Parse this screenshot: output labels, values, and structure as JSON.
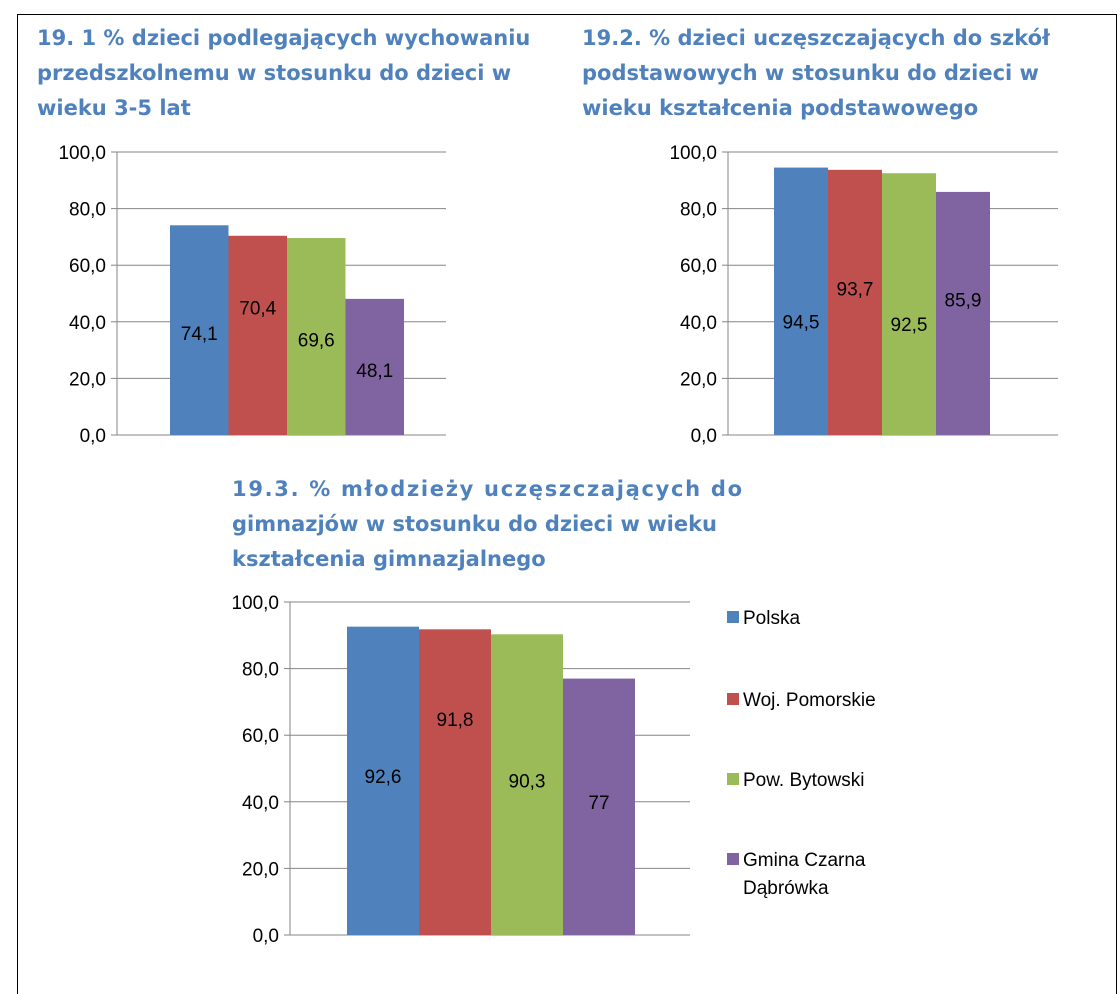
{
  "legend": [
    {
      "name": "Polska",
      "color": "#4f81bd"
    },
    {
      "name": "Woj. Pomorskie",
      "color": "#c0504d"
    },
    {
      "name": "Pow. Bytowski",
      "color": "#9bbb59"
    },
    {
      "name": "Gmina Czarna Dąbrówka",
      "color": "#8064a2"
    }
  ],
  "chart_data": [
    {
      "type": "bar",
      "title": "19. 1 % dzieci podlegających wychowaniu przedszkolnemu w stosunku do dzieci w wieku 3-5 lat",
      "title_lines": [
        "19. 1 % dzieci podlegających wychowaniu",
        "przedszkolnemu w stosunku do dzieci w",
        "wieku 3-5 lat"
      ],
      "series": [
        {
          "name": "Polska",
          "values": [
            74.1
          ]
        },
        {
          "name": "Woj. Pomorskie",
          "values": [
            70.4
          ]
        },
        {
          "name": "Pow. Bytowski",
          "values": [
            69.6
          ]
        },
        {
          "name": "Gmina Czarna Dąbrówka",
          "values": [
            48.1
          ]
        }
      ],
      "data_labels": [
        "74,1",
        "70,4",
        "69,6",
        "48,1"
      ],
      "ylim": [
        0,
        100
      ],
      "yticks": [
        "0,0",
        "20,0",
        "40,0",
        "60,0",
        "80,0",
        "100,0"
      ],
      "grid": true
    },
    {
      "type": "bar",
      "title": "19.2. % dzieci uczęszczających do szkół podstawowych w stosunku do dzieci w wieku kształcenia podstawowego",
      "title_lines": [
        "19.2. % dzieci uczęszczających do szkół",
        "podstawowych w stosunku do dzieci w",
        "wieku kształcenia podstawowego"
      ],
      "series": [
        {
          "name": "Polska",
          "values": [
            94.5
          ]
        },
        {
          "name": "Woj. Pomorskie",
          "values": [
            93.7
          ]
        },
        {
          "name": "Pow. Bytowski",
          "values": [
            92.5
          ]
        },
        {
          "name": "Gmina Czarna Dąbrówka",
          "values": [
            85.9
          ]
        }
      ],
      "data_labels": [
        "94,5",
        "93,7",
        "92,5",
        "85,9"
      ],
      "ylim": [
        0,
        100
      ],
      "yticks": [
        "0,0",
        "20,0",
        "40,0",
        "60,0",
        "80,0",
        "100,0"
      ],
      "grid": true
    },
    {
      "type": "bar",
      "title": "19.3. % młodzieży uczęszczających do gimnazjów w stosunku do dzieci w wieku kształcenia gimnazjalnego",
      "title_lines": [
        "19.3. % młodzieży uczęszczających do",
        "gimnazjów w stosunku do dzieci w wieku",
        "kształcenia gimnazjalnego"
      ],
      "series": [
        {
          "name": "Polska",
          "values": [
            92.6
          ]
        },
        {
          "name": "Woj. Pomorskie",
          "values": [
            91.8
          ]
        },
        {
          "name": "Pow. Bytowski",
          "values": [
            90.3
          ]
        },
        {
          "name": "Gmina Czarna Dąbrówka",
          "values": [
            77
          ]
        }
      ],
      "data_labels": [
        "92,6",
        "91,8",
        "90,3",
        "77"
      ],
      "ylim": [
        0,
        100
      ],
      "yticks": [
        "0,0",
        "20,0",
        "40,0",
        "60,0",
        "80,0",
        "100,0"
      ],
      "grid": true,
      "legend_position": "right"
    }
  ]
}
